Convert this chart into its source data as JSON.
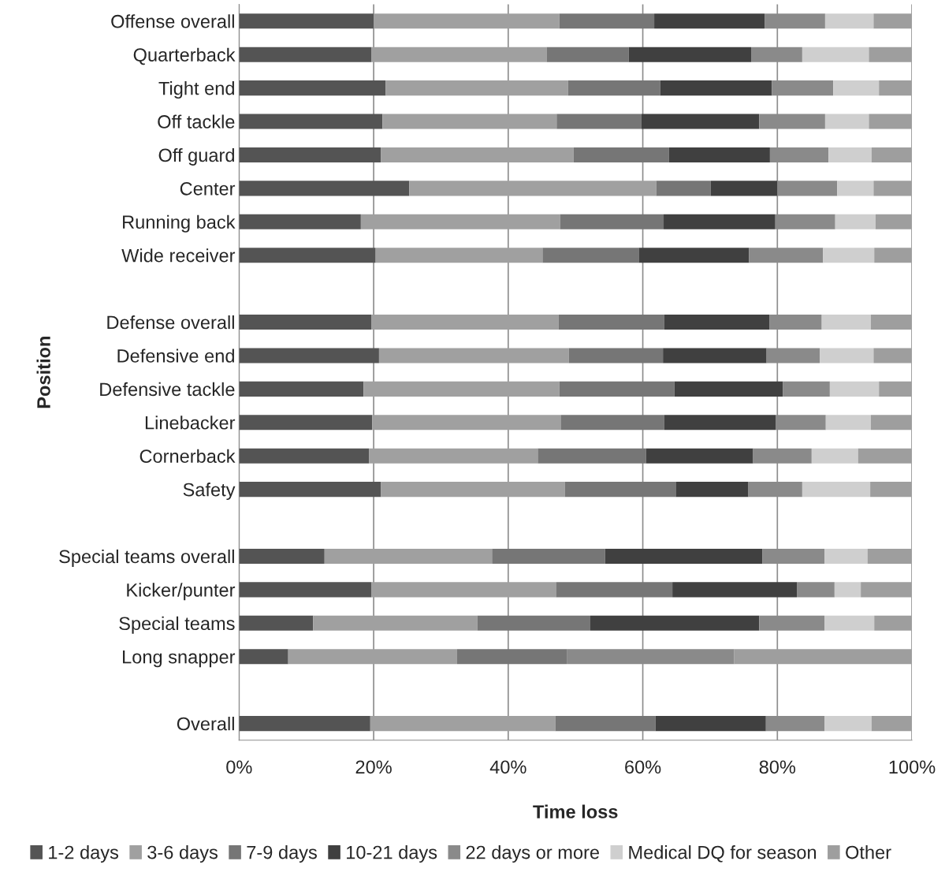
{
  "chart_data": {
    "type": "bar",
    "orientation": "horizontal",
    "stacked": true,
    "xlabel": "Time loss",
    "ylabel": "Position",
    "categories": [
      "Offense overall",
      "Quarterback",
      "Tight end",
      "Off tackle",
      "Off guard",
      "Center",
      "Running back",
      "Wide receiver",
      null,
      "Defense overall",
      "Defensive end",
      "Defensive tackle",
      "Linebacker",
      "Cornerback",
      "Safety",
      null,
      "Special teams overall",
      "Kicker/punter",
      "Special teams",
      "Long snapper",
      null,
      "Overall"
    ],
    "series": [
      {
        "name": "1-2 days",
        "color": "#545454",
        "values": [
          20.0,
          19.7,
          21.8,
          21.3,
          21.1,
          25.3,
          18.1,
          20.3,
          null,
          19.7,
          20.8,
          18.5,
          19.8,
          19.3,
          21.1,
          null,
          12.7,
          19.7,
          11.0,
          7.3,
          null,
          19.5
        ]
      },
      {
        "name": "3-6 days",
        "color": "#a0a0a0",
        "values": [
          27.6,
          26.0,
          27.1,
          25.9,
          28.6,
          36.7,
          29.6,
          24.8,
          null,
          27.8,
          28.2,
          29.1,
          28.0,
          25.1,
          27.3,
          null,
          24.9,
          27.4,
          24.4,
          25.1,
          null,
          27.5
        ]
      },
      {
        "name": "7-9 days",
        "color": "#767676",
        "values": [
          14.1,
          12.2,
          13.7,
          12.6,
          14.2,
          8.1,
          15.4,
          14.3,
          null,
          15.7,
          14.0,
          17.1,
          15.4,
          16.1,
          16.5,
          null,
          16.8,
          17.3,
          16.8,
          16.3,
          null,
          14.9
        ]
      },
      {
        "name": "10-21 days",
        "color": "#404040",
        "values": [
          16.4,
          18.2,
          16.6,
          17.5,
          15.0,
          9.9,
          16.6,
          16.4,
          null,
          15.6,
          15.4,
          16.1,
          16.6,
          15.9,
          10.8,
          null,
          23.4,
          18.5,
          25.1,
          0,
          null,
          16.4
        ]
      },
      {
        "name": "22 days or more",
        "color": "#8a8a8a",
        "values": [
          9.0,
          7.6,
          9.1,
          9.8,
          8.7,
          8.9,
          8.9,
          11.0,
          null,
          7.8,
          7.9,
          7.0,
          7.4,
          8.7,
          8.0,
          null,
          9.2,
          5.6,
          9.7,
          24.9,
          null,
          8.7
        ]
      },
      {
        "name": "Medical DQ for season",
        "color": "#cfcfcf",
        "values": [
          7.2,
          9.9,
          6.8,
          6.5,
          6.4,
          5.4,
          6.0,
          7.6,
          null,
          7.3,
          8.0,
          7.3,
          6.7,
          6.9,
          10.1,
          null,
          6.4,
          3.9,
          7.4,
          0,
          null,
          7.0
        ]
      },
      {
        "name": "Other",
        "color": "#9e9e9e",
        "values": [
          5.7,
          6.4,
          4.9,
          6.4,
          6.0,
          5.7,
          5.4,
          5.6,
          null,
          6.1,
          5.7,
          4.9,
          6.1,
          8.0,
          6.2,
          null,
          6.6,
          7.6,
          5.6,
          26.4,
          null,
          6.0
        ]
      }
    ],
    "xlim": [
      0,
      100
    ],
    "xticks": [
      {
        "value": 0,
        "label": "0%"
      },
      {
        "value": 20,
        "label": "20%"
      },
      {
        "value": 40,
        "label": "40%"
      },
      {
        "value": 60,
        "label": "60%"
      },
      {
        "value": 80,
        "label": "80%"
      },
      {
        "value": 100,
        "label": "100%"
      }
    ],
    "grid": "x",
    "legend": "bottom"
  }
}
